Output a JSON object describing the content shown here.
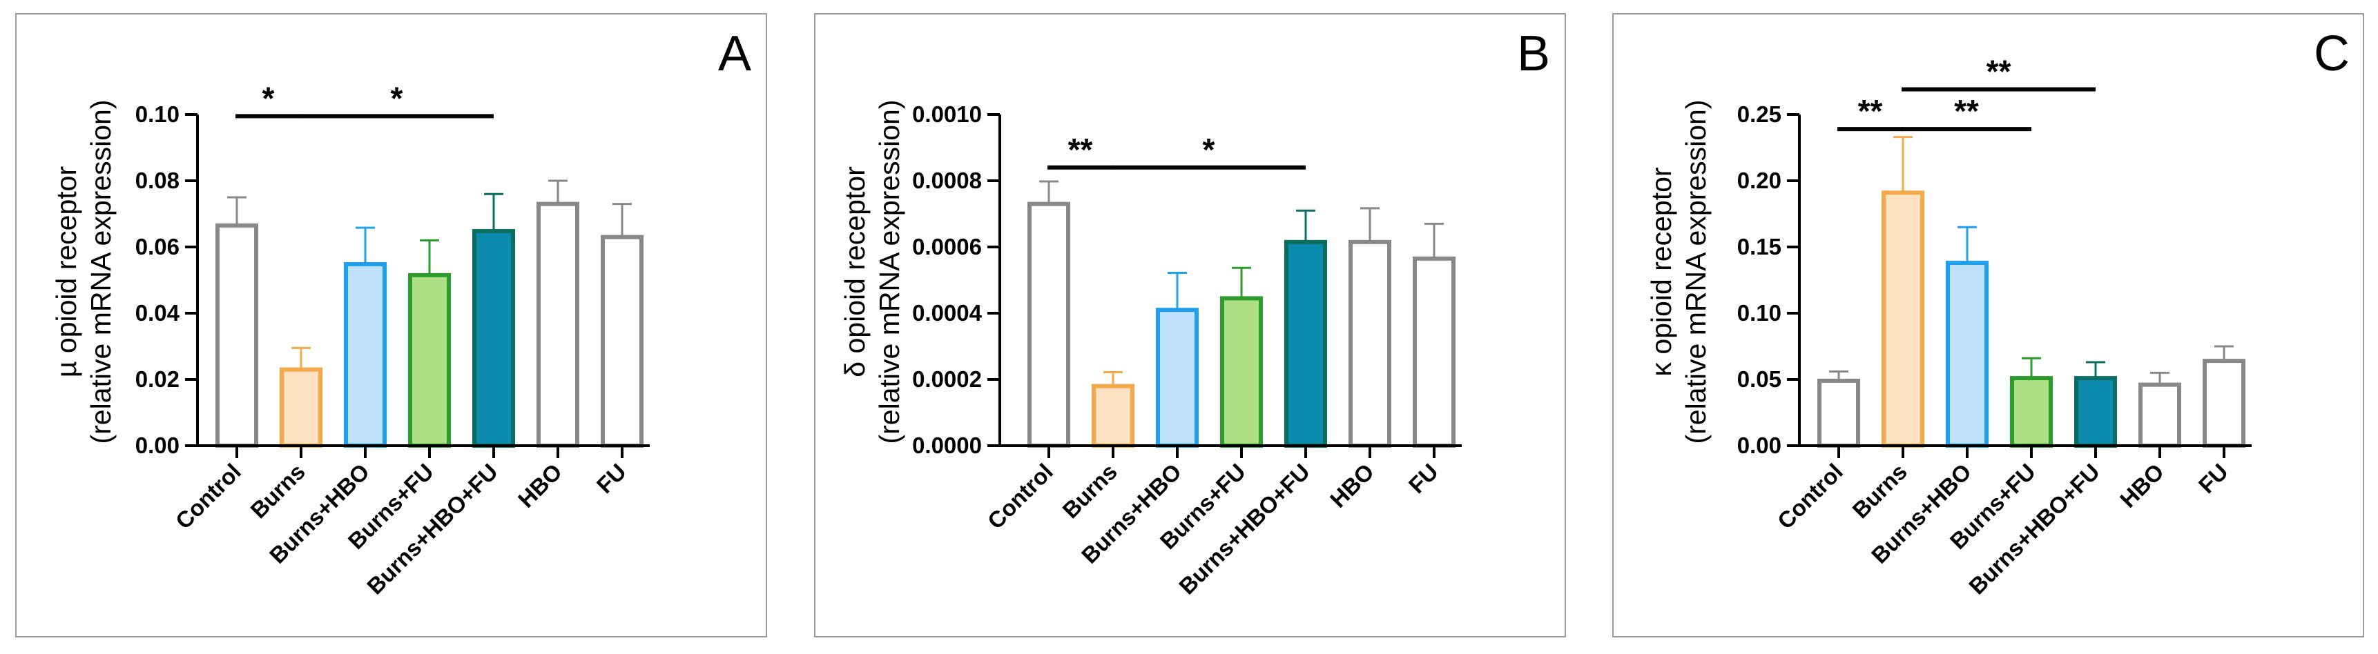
{
  "chart_data": [
    {
      "type": "bar",
      "panel_letter": "A",
      "ylabel_lines": [
        "µ opioid receptor",
        "(relative mRNA expression)"
      ],
      "categories": [
        "Control",
        "Burns",
        "Burns+HBO",
        "Burns+FU",
        "Burns+HBO+FU",
        "HBO",
        "FU"
      ],
      "values": [
        0.0665,
        0.023,
        0.0548,
        0.0515,
        0.0648,
        0.073,
        0.063
      ],
      "errors": [
        0.0085,
        0.0065,
        0.011,
        0.0105,
        0.0112,
        0.007,
        0.01
      ],
      "ylim": [
        0,
        0.1
      ],
      "yticks": [
        0,
        0.02,
        0.04,
        0.06,
        0.08,
        0.1
      ],
      "ytick_labels": [
        "0.00",
        "0.02",
        "0.04",
        "0.06",
        "0.08",
        "0.10"
      ],
      "significance": [
        {
          "from": 0,
          "to": 1,
          "level": 0.0995,
          "label": "*"
        },
        {
          "from": 1,
          "to": 4,
          "level": 0.0995,
          "label": "*"
        }
      ]
    },
    {
      "type": "bar",
      "panel_letter": "B",
      "ylabel_lines": [
        "δ opioid receptor",
        "(relative mRNA expression)"
      ],
      "categories": [
        "Control",
        "Burns",
        "Burns+HBO",
        "Burns+FU",
        "Burns+HBO+FU",
        "HBO",
        "FU"
      ],
      "values": [
        0.00073,
        0.00018,
        0.00041,
        0.000445,
        0.000615,
        0.000615,
        0.000565
      ],
      "errors": [
        6.8e-05,
        4.2e-05,
        0.000112,
        9.2e-05,
        9.5e-05,
        0.000102,
        0.000105
      ],
      "ylim": [
        0,
        0.001
      ],
      "yticks": [
        0,
        0.0002,
        0.0004,
        0.0006,
        0.0008,
        0.001
      ],
      "ytick_labels": [
        "0.0000",
        "0.0002",
        "0.0004",
        "0.0006",
        "0.0008",
        "0.0010"
      ],
      "significance": [
        {
          "from": 0,
          "to": 1,
          "level": 0.00084,
          "label": "**"
        },
        {
          "from": 1,
          "to": 4,
          "level": 0.00084,
          "label": "*"
        }
      ]
    },
    {
      "type": "bar",
      "panel_letter": "C",
      "ylabel_lines": [
        "κ opioid receptor",
        "(relative mRNA expression)"
      ],
      "categories": [
        "Control",
        "Burns",
        "Burns+HBO",
        "Burns+FU",
        "Burns+HBO+FU",
        "HBO",
        "FU"
      ],
      "values": [
        0.049,
        0.191,
        0.138,
        0.051,
        0.051,
        0.046,
        0.064
      ],
      "errors": [
        0.007,
        0.042,
        0.027,
        0.015,
        0.012,
        0.009,
        0.011
      ],
      "ylim": [
        0,
        0.25
      ],
      "yticks": [
        0,
        0.05,
        0.1,
        0.15,
        0.2,
        0.25
      ],
      "ytick_labels": [
        "0.00",
        "0.05",
        "0.10",
        "0.15",
        "0.20",
        "0.25"
      ],
      "significance": [
        {
          "from": 0,
          "to": 1,
          "level": 0.239,
          "label": "**"
        },
        {
          "from": 1,
          "to": 3,
          "level": 0.239,
          "label": "**"
        },
        {
          "from": 1,
          "to": 4,
          "level": 0.269,
          "label": "**"
        }
      ]
    }
  ],
  "bar_styles": [
    {
      "stroke": "#888888",
      "fill": "#ffffff"
    },
    {
      "stroke": "#f5a94a",
      "fill": "#fde2c2"
    },
    {
      "stroke": "#1fa0e8",
      "fill": "#bfe0fa"
    },
    {
      "stroke": "#2c9a2c",
      "fill": "#addf85"
    },
    {
      "stroke": "#0a6f5f",
      "fill": "#0a8bae"
    },
    {
      "stroke": "#888888",
      "fill": "#ffffff"
    },
    {
      "stroke": "#888888",
      "fill": "#ffffff"
    }
  ]
}
